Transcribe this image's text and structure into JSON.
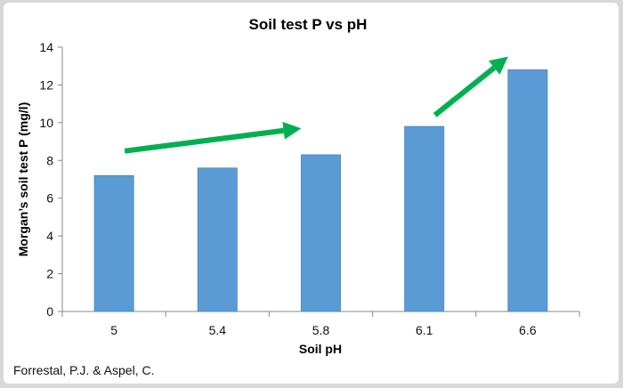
{
  "chart_data": {
    "type": "bar",
    "title": "Soil test P vs pH",
    "xlabel": "Soil pH",
    "ylabel": "Morgan’s soil test P (mg/l)",
    "categories": [
      "5",
      "5.4",
      "5.8",
      "6.1",
      "6.6"
    ],
    "values": [
      7.2,
      7.6,
      8.3,
      9.8,
      12.8
    ],
    "ylim": [
      0,
      14
    ],
    "yticks": [
      "0",
      "2",
      "4",
      "6",
      "8",
      "10",
      "12",
      "14"
    ],
    "grid": false,
    "legend": "none",
    "bar_color": "#5b9bd5",
    "annotations": [
      {
        "type": "arrow",
        "color": "#00b050",
        "from": {
          "category": "5",
          "value": 8.5
        },
        "to": {
          "category": "5.8",
          "value": 9.7
        }
      },
      {
        "type": "arrow",
        "color": "#00b050",
        "from": {
          "category": "6.1",
          "value": 10.4
        },
        "to": {
          "category": "6.6",
          "value": 13.5
        }
      }
    ]
  },
  "source": "Forrestal, P.J. & Aspel, C."
}
